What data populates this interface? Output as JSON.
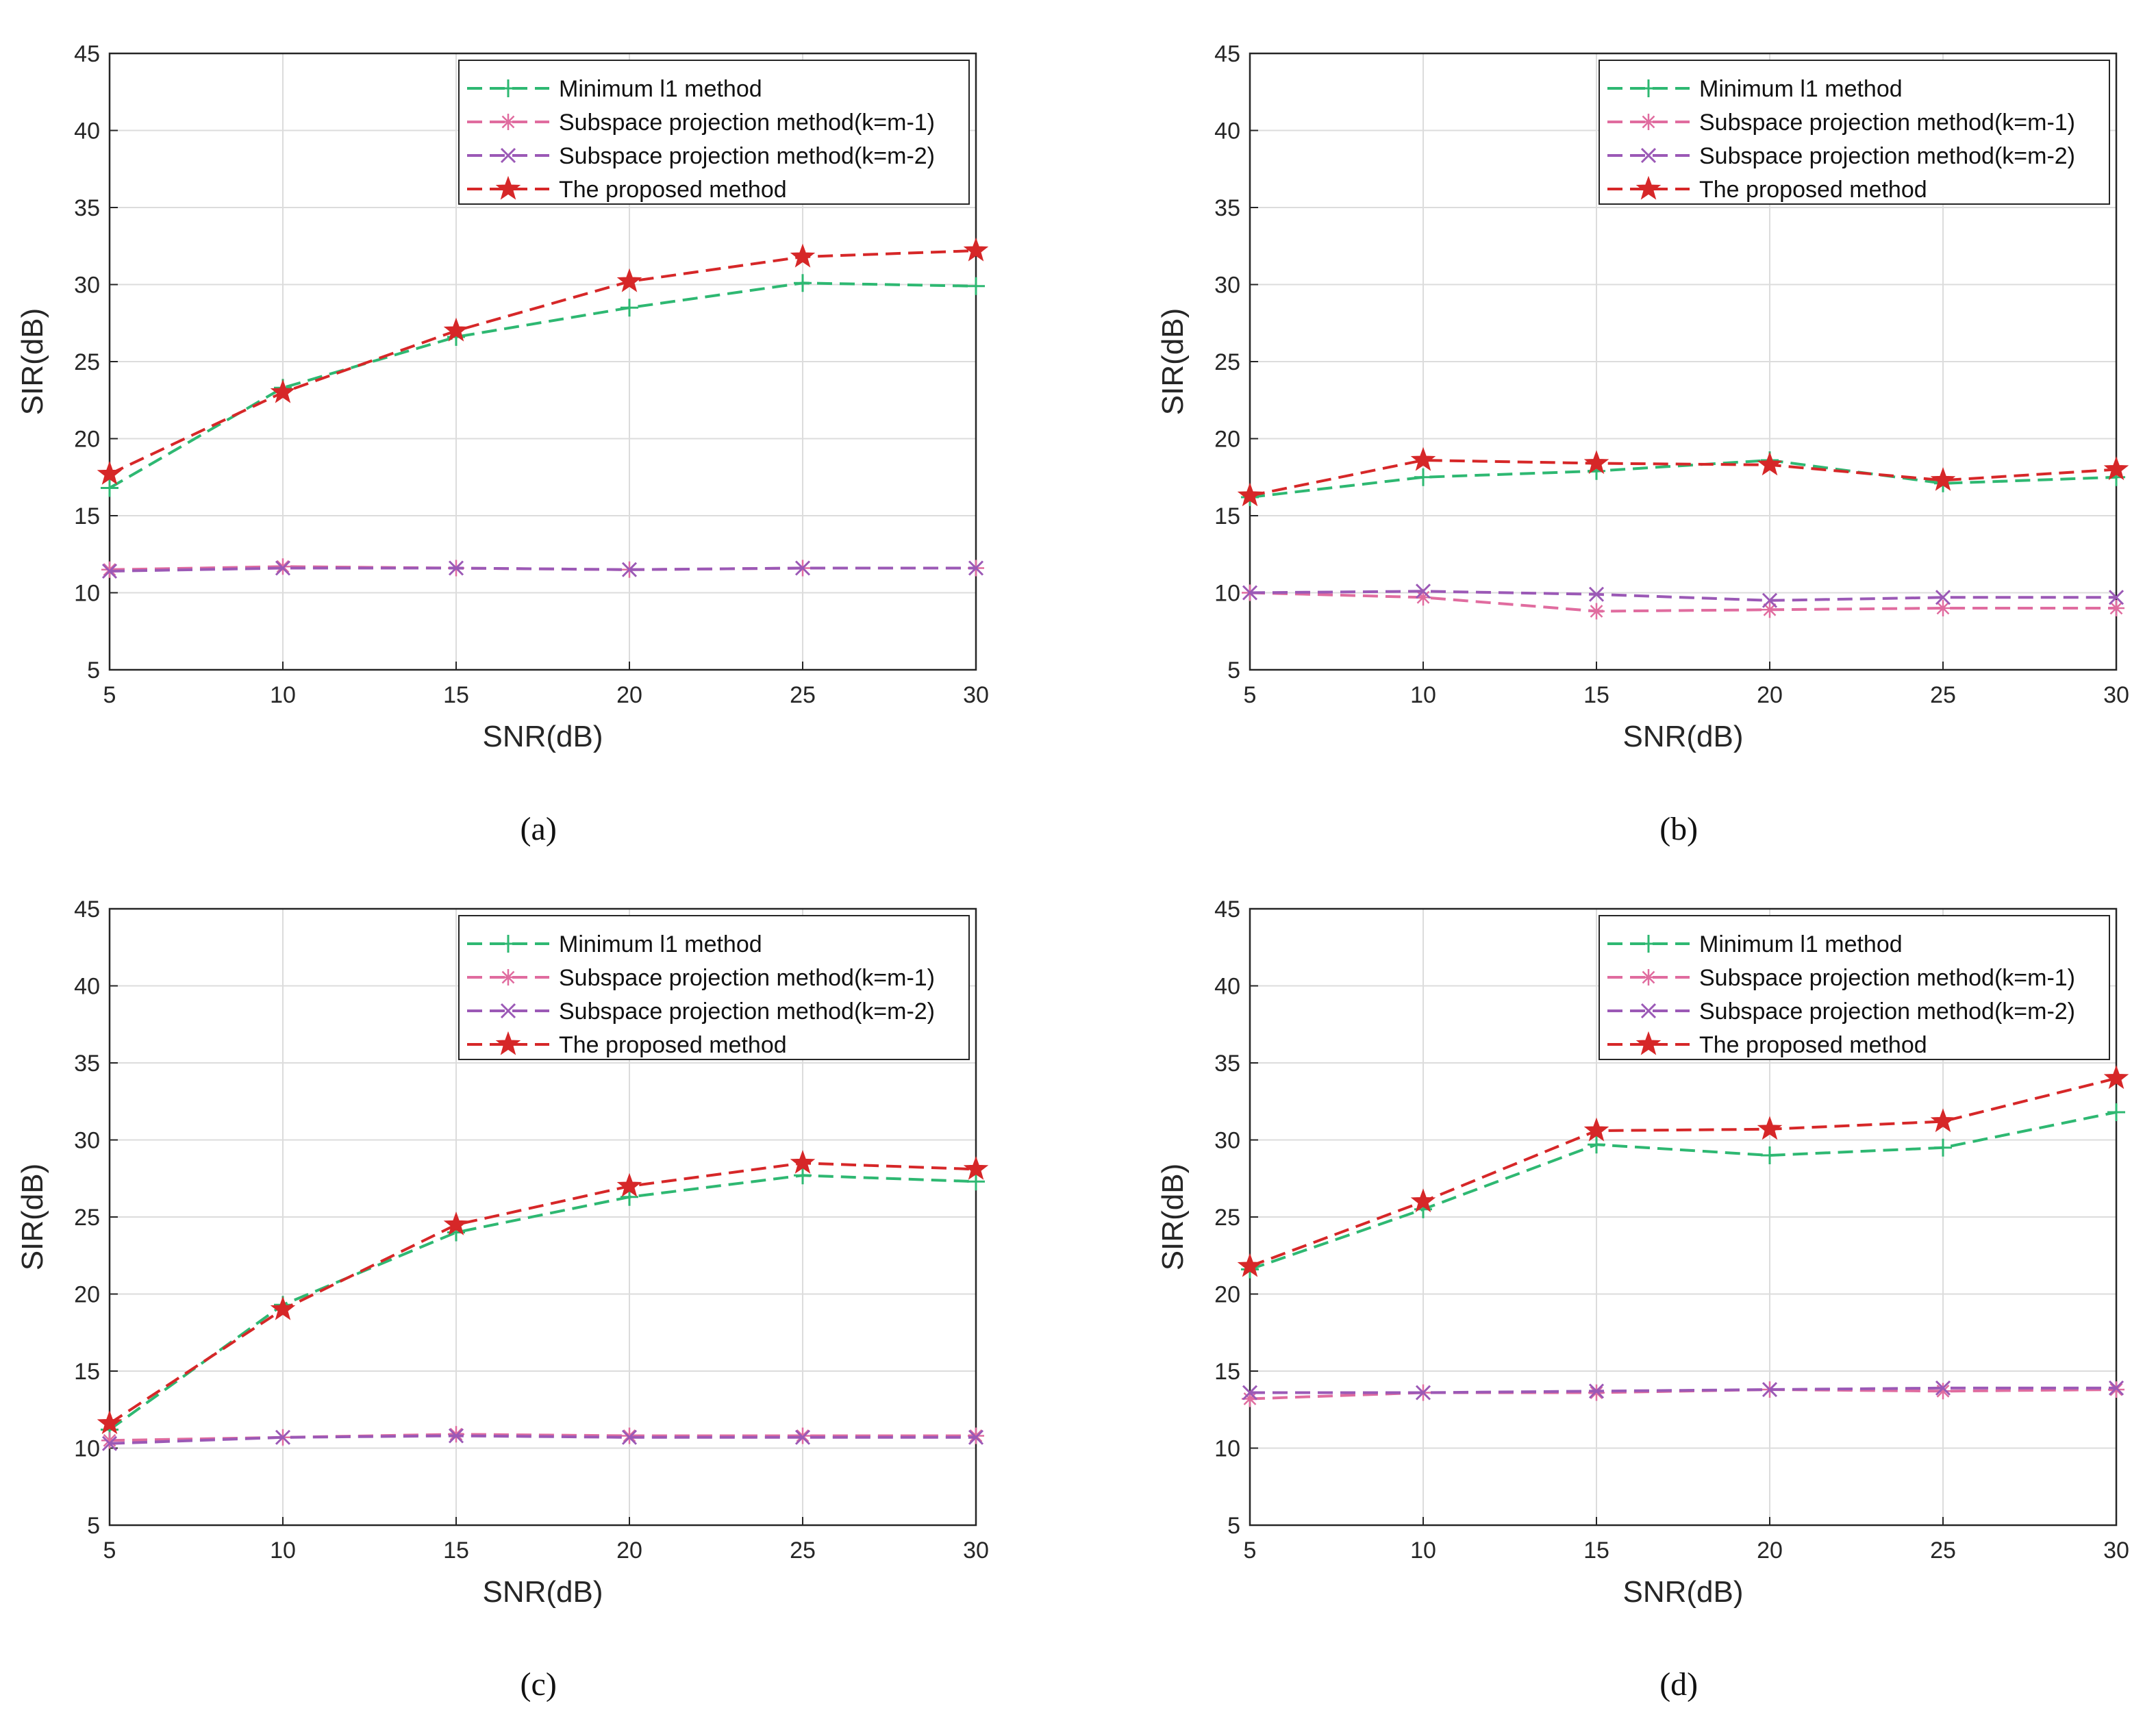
{
  "chart_data": [
    {
      "type": "line",
      "caption": "(a)",
      "xlabel": "SNR(dB)",
      "ylabel": "SIR(dB)",
      "xlim": [
        5,
        30
      ],
      "ylim": [
        5,
        45
      ],
      "xticks": [
        5,
        10,
        15,
        20,
        25,
        30
      ],
      "yticks": [
        5,
        10,
        15,
        20,
        25,
        30,
        35,
        40,
        45
      ],
      "grid": true,
      "legend_position": "top-right",
      "x": [
        5,
        10,
        15,
        20,
        25,
        30
      ],
      "series": [
        {
          "name": "Minimum l1 method",
          "color": "#2eb872",
          "marker": "plus",
          "values": [
            16.8,
            23.3,
            26.6,
            28.5,
            30.1,
            29.9
          ]
        },
        {
          "name": "Subspace projection method(k=m-1)",
          "color": "#e06c9f",
          "marker": "asterisk",
          "values": [
            11.5,
            11.7,
            11.6,
            11.5,
            11.6,
            11.6
          ]
        },
        {
          "name": "Subspace projection method(k=m-2)",
          "color": "#9b59b6",
          "marker": "cross",
          "values": [
            11.4,
            11.6,
            11.6,
            11.5,
            11.6,
            11.6
          ]
        },
        {
          "name": "The proposed method",
          "color": "#d62728",
          "marker": "star",
          "values": [
            17.7,
            23.0,
            27.0,
            30.2,
            31.8,
            32.2
          ]
        }
      ]
    },
    {
      "type": "line",
      "caption": "(b)",
      "xlabel": "SNR(dB)",
      "ylabel": "SIR(dB)",
      "xlim": [
        5,
        30
      ],
      "ylim": [
        5,
        45
      ],
      "xticks": [
        5,
        10,
        15,
        20,
        25,
        30
      ],
      "yticks": [
        5,
        10,
        15,
        20,
        25,
        30,
        35,
        40,
        45
      ],
      "grid": true,
      "legend_position": "top-right",
      "x": [
        5,
        10,
        15,
        20,
        25,
        30
      ],
      "series": [
        {
          "name": "Minimum l1 method",
          "color": "#2eb872",
          "marker": "plus",
          "values": [
            16.2,
            17.5,
            17.9,
            18.6,
            17.1,
            17.5
          ]
        },
        {
          "name": "Subspace projection method(k=m-1)",
          "color": "#e06c9f",
          "marker": "asterisk",
          "values": [
            10.0,
            9.7,
            8.8,
            8.9,
            9.0,
            9.0
          ]
        },
        {
          "name": "Subspace projection method(k=m-2)",
          "color": "#9b59b6",
          "marker": "cross",
          "values": [
            10.0,
            10.1,
            9.9,
            9.5,
            9.7,
            9.7
          ]
        },
        {
          "name": "The proposed method",
          "color": "#d62728",
          "marker": "star",
          "values": [
            16.3,
            18.6,
            18.4,
            18.3,
            17.3,
            18.0
          ]
        }
      ]
    },
    {
      "type": "line",
      "caption": "(c)",
      "xlabel": "SNR(dB)",
      "ylabel": "SIR(dB)",
      "xlim": [
        5,
        30
      ],
      "ylim": [
        5,
        45
      ],
      "xticks": [
        5,
        10,
        15,
        20,
        25,
        30
      ],
      "yticks": [
        5,
        10,
        15,
        20,
        25,
        30,
        35,
        40,
        45
      ],
      "grid": true,
      "legend_position": "top-right",
      "x": [
        5,
        10,
        15,
        20,
        25,
        30
      ],
      "series": [
        {
          "name": "Minimum l1 method",
          "color": "#2eb872",
          "marker": "plus",
          "values": [
            11.2,
            19.3,
            24.0,
            26.3,
            27.7,
            27.3
          ]
        },
        {
          "name": "Subspace projection method(k=m-1)",
          "color": "#e06c9f",
          "marker": "asterisk",
          "values": [
            10.5,
            10.7,
            10.9,
            10.8,
            10.8,
            10.8
          ]
        },
        {
          "name": "Subspace projection method(k=m-2)",
          "color": "#9b59b6",
          "marker": "cross",
          "values": [
            10.3,
            10.7,
            10.8,
            10.7,
            10.7,
            10.7
          ]
        },
        {
          "name": "The proposed method",
          "color": "#d62728",
          "marker": "star",
          "values": [
            11.6,
            19.0,
            24.5,
            27.0,
            28.5,
            28.1
          ]
        }
      ]
    },
    {
      "type": "line",
      "caption": "(d)",
      "xlabel": "SNR(dB)",
      "ylabel": "SIR(dB)",
      "xlim": [
        5,
        30
      ],
      "ylim": [
        5,
        45
      ],
      "xticks": [
        5,
        10,
        15,
        20,
        25,
        30
      ],
      "yticks": [
        5,
        10,
        15,
        20,
        25,
        30,
        35,
        40,
        45
      ],
      "grid": true,
      "legend_position": "top-right",
      "x": [
        5,
        10,
        15,
        20,
        25,
        30
      ],
      "series": [
        {
          "name": "Minimum l1 method",
          "color": "#2eb872",
          "marker": "plus",
          "values": [
            21.6,
            25.5,
            29.7,
            29.0,
            29.5,
            31.8
          ]
        },
        {
          "name": "Subspace projection method(k=m-1)",
          "color": "#e06c9f",
          "marker": "asterisk",
          "values": [
            13.2,
            13.6,
            13.6,
            13.8,
            13.7,
            13.8
          ]
        },
        {
          "name": "Subspace projection method(k=m-2)",
          "color": "#9b59b6",
          "marker": "cross",
          "values": [
            13.6,
            13.6,
            13.7,
            13.8,
            13.9,
            13.9
          ]
        },
        {
          "name": "The proposed method",
          "color": "#d62728",
          "marker": "star",
          "values": [
            21.8,
            26.0,
            30.6,
            30.7,
            31.2,
            34.0
          ]
        }
      ]
    }
  ]
}
